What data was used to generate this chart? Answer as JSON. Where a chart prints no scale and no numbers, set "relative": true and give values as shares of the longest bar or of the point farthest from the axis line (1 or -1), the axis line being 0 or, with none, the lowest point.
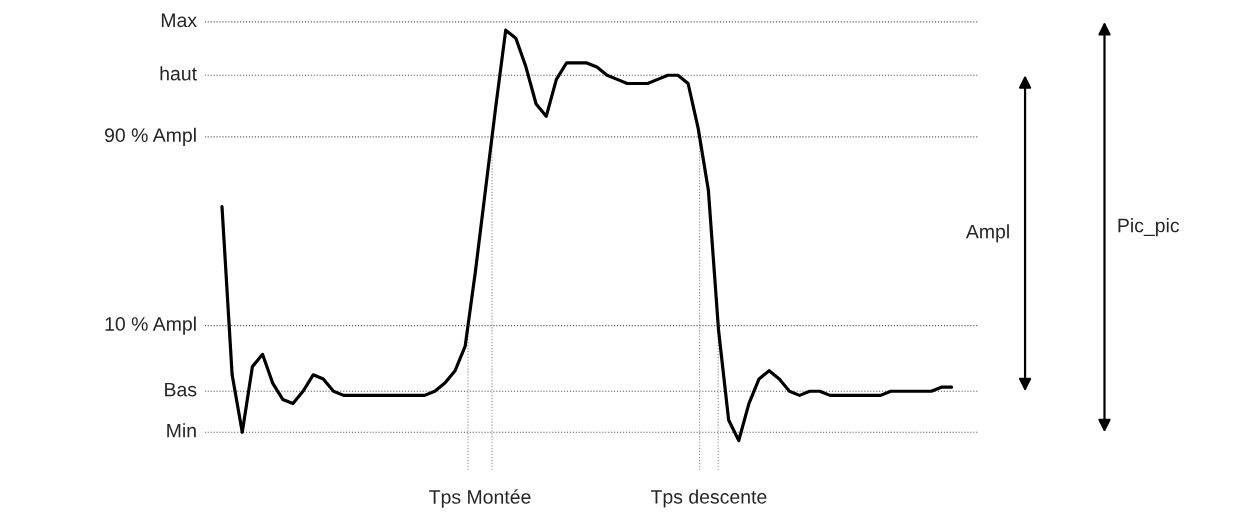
{
  "chart_data": {
    "type": "line",
    "relative": true,
    "legend": false,
    "marker": "none",
    "line_style": "solid",
    "categories": [
      null,
      null,
      null,
      null,
      null,
      null,
      null,
      null,
      null,
      null,
      null,
      null,
      null,
      null,
      null,
      null,
      null,
      null,
      null,
      null,
      null,
      null,
      null,
      null,
      null,
      null,
      null,
      null,
      null,
      null,
      null,
      null,
      null,
      null,
      null,
      null,
      null,
      null,
      null,
      null,
      null,
      null,
      null,
      null,
      null,
      null,
      null,
      null,
      null,
      null,
      null,
      null,
      null,
      null,
      null,
      null,
      null,
      null,
      null,
      null,
      null,
      null,
      null,
      null,
      null,
      null,
      null,
      null,
      null,
      null,
      null,
      null,
      null
    ],
    "series": [
      {
        "color": "#000000",
        "values": [
          0.57,
          0.16,
          0.02,
          0.18,
          0.21,
          0.14,
          0.1,
          0.09,
          0.12,
          0.16,
          0.15,
          0.12,
          0.11,
          0.11,
          0.11,
          0.11,
          0.11,
          0.11,
          0.11,
          0.11,
          0.11,
          0.12,
          0.14,
          0.17,
          0.23,
          0.41,
          0.61,
          0.81,
          1,
          0.98,
          0.91,
          0.82,
          0.79,
          0.88,
          0.92,
          0.92,
          0.92,
          0.91,
          0.89,
          0.88,
          0.87,
          0.87,
          0.87,
          0.88,
          0.89,
          0.89,
          0.87,
          0.76,
          0.61,
          0.27,
          0.05,
          0,
          0.09,
          0.15,
          0.17,
          0.15,
          0.12,
          0.11,
          0.12,
          0.12,
          0.11,
          0.11,
          0.11,
          0.11,
          0.11,
          0.11,
          0.12,
          0.12,
          0.12,
          0.12,
          0.12,
          0.13,
          0.13
        ]
      }
    ],
    "ref_lines": [
      {
        "axis": "y",
        "value": 1.02,
        "label": "Max",
        "color": "#555555",
        "line_style": "dotted"
      },
      {
        "axis": "y",
        "value": 0.89,
        "label": "haut",
        "color": "#555555",
        "line_style": "dotted"
      },
      {
        "axis": "y",
        "value": 0.74,
        "label": "90 % Ampl",
        "color": "#555555",
        "line_style": "dotted"
      },
      {
        "axis": "y",
        "value": 0.28,
        "label": "10 % Ampl",
        "color": "#555555",
        "line_style": "dotted"
      },
      {
        "axis": "y",
        "value": 0.12,
        "label": "Bas",
        "color": "#555555",
        "line_style": "dotted"
      },
      {
        "axis": "y",
        "value": 0.02,
        "label": "Min",
        "color": "#555555",
        "line_style": "dotted"
      }
    ],
    "annotations": [
      "Tps Montée",
      "Tps descente",
      "Ampl",
      "Pic_pic"
    ]
  }
}
